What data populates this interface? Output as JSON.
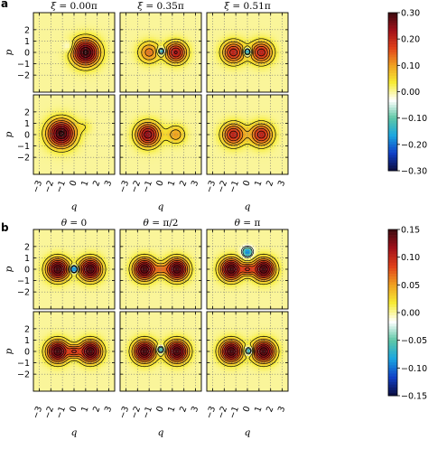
{
  "figure": {
    "panels": [
      {
        "label": "a",
        "column_titles": [
          {
            "symbol": "ξ",
            "value": " = 0.00π"
          },
          {
            "symbol": "ξ",
            "value": " = 0.35π"
          },
          {
            "symbol": "ξ",
            "value": " = 0.51π"
          }
        ],
        "x_axis_label": "q",
        "y_axis_label": "p",
        "x_ticks": [
          "−3",
          "−2",
          "−1",
          "0",
          "1",
          "2",
          "3"
        ],
        "y_ticks": [
          "2",
          "1",
          "0",
          "−1",
          "−2"
        ],
        "colorbar": {
          "range": [
            -0.3,
            0.3
          ],
          "ticks": [
            {
              "label": "0.30",
              "value": 0.3
            },
            {
              "label": "0.20",
              "value": 0.2
            },
            {
              "label": "0.10",
              "value": 0.1
            },
            {
              "label": "0.00",
              "value": 0.0
            },
            {
              "label": "−0.10",
              "value": -0.1
            },
            {
              "label": "−0.20",
              "value": -0.2
            },
            {
              "label": "−0.30",
              "value": -0.3
            }
          ]
        }
      },
      {
        "label": "b",
        "column_titles": [
          {
            "symbol": "θ",
            "value": " = 0"
          },
          {
            "symbol": "θ",
            "value": " = π/2"
          },
          {
            "symbol": "θ",
            "value": " = π"
          }
        ],
        "x_axis_label": "q",
        "y_axis_label": "p",
        "x_ticks": [
          "−3",
          "−2",
          "−1",
          "0",
          "1",
          "2",
          "3"
        ],
        "y_ticks": [
          "2",
          "1",
          "0",
          "−1",
          "−2"
        ],
        "colorbar": {
          "range": [
            -0.15,
            0.15
          ],
          "ticks": [
            {
              "label": "0.15",
              "value": 0.15
            },
            {
              "label": "0.10",
              "value": 0.1
            },
            {
              "label": "0.05",
              "value": 0.05
            },
            {
              "label": "0.00",
              "value": 0.0
            },
            {
              "label": "−0.05",
              "value": -0.05
            },
            {
              "label": "−0.10",
              "value": -0.1
            },
            {
              "label": "−0.15",
              "value": -0.15
            }
          ]
        }
      }
    ],
    "colormap": [
      "#0b0c3e",
      "#1040c8",
      "#1aa6e0",
      "#5ec7a6",
      "#ffffff",
      "#f6ec35",
      "#f0a020",
      "#e0401a",
      "#a0101a",
      "#3a0a0e"
    ]
  }
}
